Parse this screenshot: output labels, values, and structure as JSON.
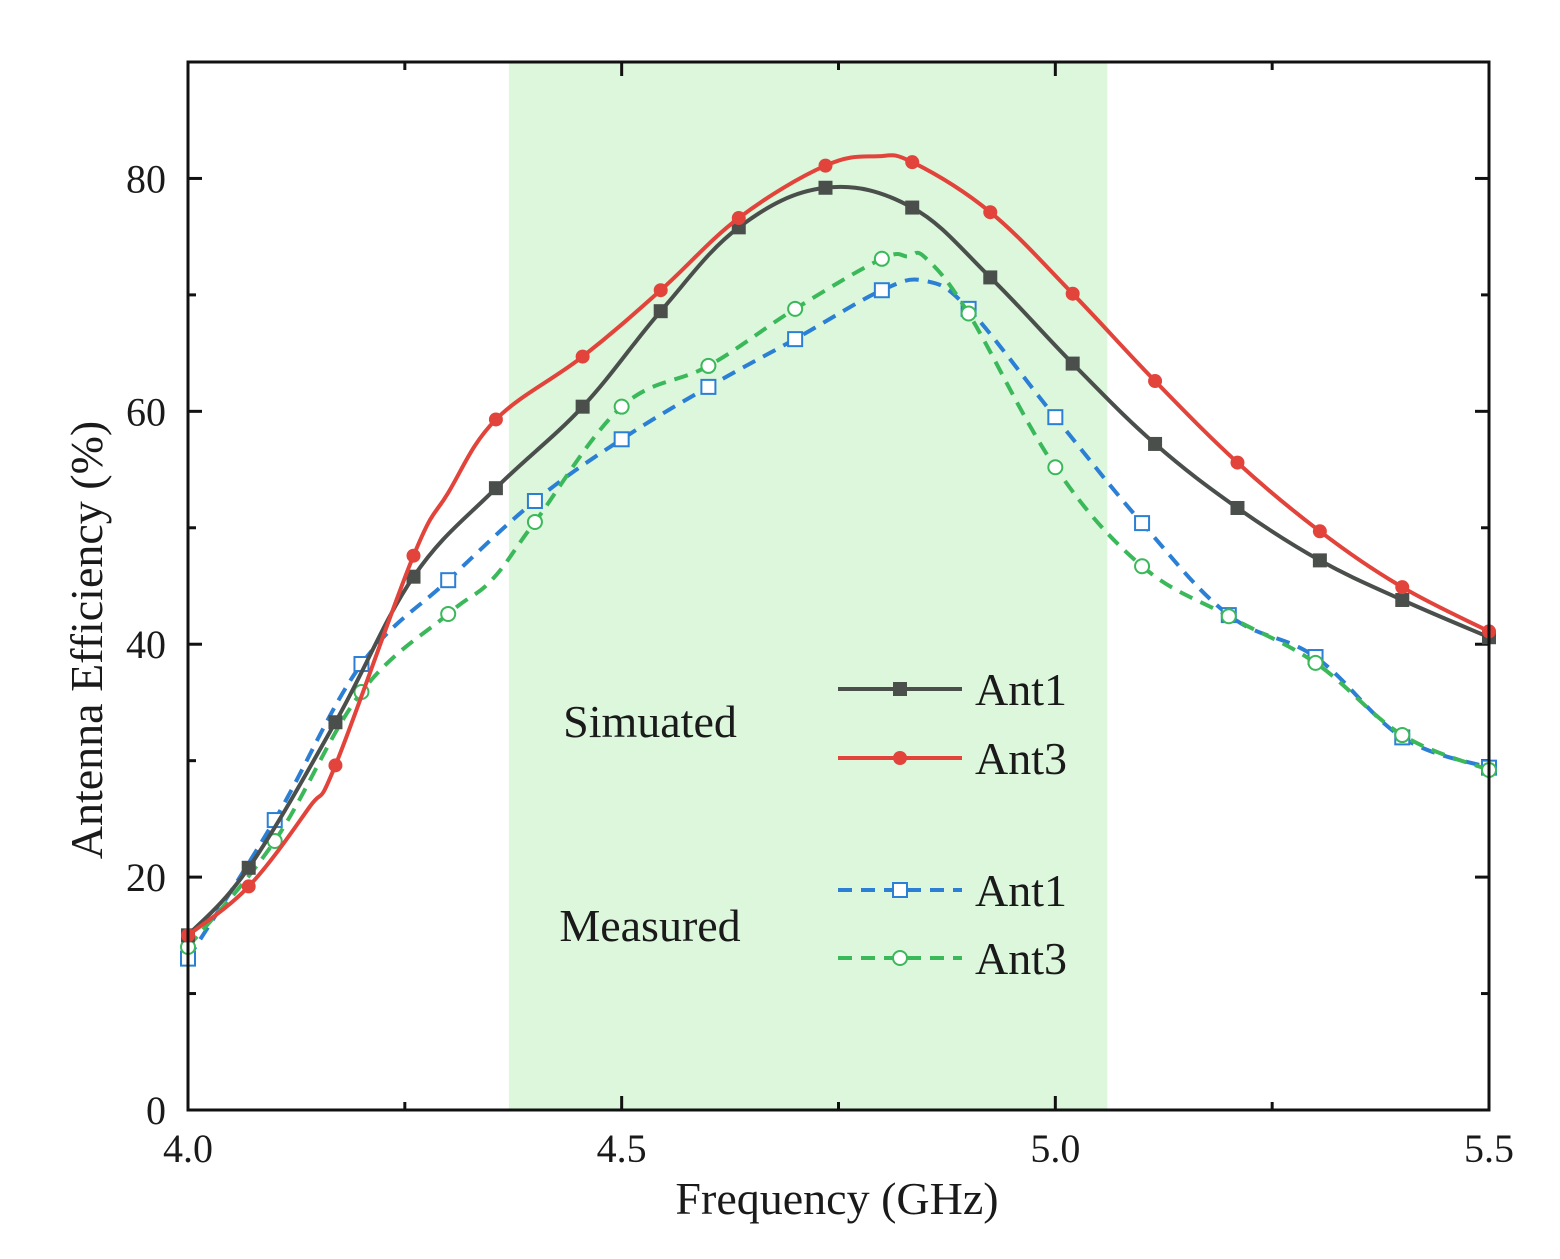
{
  "chart_data": {
    "type": "line",
    "xlabel": "Frequency (GHz)",
    "ylabel": "Antenna Efficiency (%)",
    "xlim": [
      4.0,
      5.5
    ],
    "ylim": [
      0,
      90
    ],
    "x_ticks": [
      4.0,
      4.5,
      5.0,
      5.5
    ],
    "x_tick_labels": [
      "4.0",
      "4.5",
      "5.0",
      "5.5"
    ],
    "x_minor_ticks": [
      4.25,
      4.75,
      5.25
    ],
    "y_ticks": [
      0,
      20,
      40,
      60,
      80
    ],
    "y_tick_labels": [
      "0",
      "20",
      "40",
      "60",
      "80"
    ],
    "y_minor_ticks": [
      10,
      30,
      50,
      70
    ],
    "highlight_band": {
      "x_start": 4.37,
      "x_end": 5.06,
      "color": "#dcf7dc"
    },
    "legend_groups": [
      {
        "label": "Simuated",
        "series": [
          "Ant1",
          "Ant3"
        ]
      },
      {
        "label": "Measured",
        "series": [
          "Ant1",
          "Ant3"
        ]
      }
    ],
    "series": [
      {
        "name": "Ant1",
        "group": "Simuated",
        "color": "#4a4f4c",
        "dash": "solid",
        "marker": "square-filled",
        "x": [
          4.0,
          4.07,
          4.17,
          4.26,
          4.355,
          4.455,
          4.545,
          4.635,
          4.735,
          4.835,
          4.925,
          5.02,
          5.115,
          5.21,
          5.305,
          5.4,
          5.5
        ],
        "values": [
          15,
          20.8,
          33.3,
          45.8,
          53.4,
          60.4,
          68.6,
          75.8,
          79.2,
          77.5,
          71.5,
          64.1,
          57.2,
          51.7,
          47.2,
          43.8,
          40.6
        ]
      },
      {
        "name": "Ant3",
        "group": "Simuated",
        "color": "#e2433a",
        "dash": "solid",
        "marker": "circle-filled",
        "x": [
          4.0,
          4.07,
          4.14,
          4.17,
          4.26,
          4.3,
          4.355,
          4.455,
          4.545,
          4.635,
          4.735,
          4.795,
          4.835,
          4.925,
          5.02,
          5.115,
          5.21,
          5.305,
          5.4,
          5.5
        ],
        "values": [
          15,
          19.2,
          26,
          29.6,
          47.6,
          53,
          59.3,
          64.7,
          70.4,
          76.6,
          81.1,
          81.9,
          81.4,
          77.1,
          70.1,
          62.6,
          55.6,
          49.7,
          44.9,
          41.1
        ]
      },
      {
        "name": "Ant1",
        "group": "Measured",
        "color": "#2b7fd4",
        "dash": "dashed",
        "marker": "square-open",
        "x": [
          4.0,
          4.1,
          4.2,
          4.3,
          4.4,
          4.5,
          4.6,
          4.7,
          4.8,
          4.85,
          4.9,
          5.0,
          5.1,
          5.2,
          5.3,
          5.4,
          5.5
        ],
        "values": [
          13,
          24.9,
          38.3,
          45.5,
          52.3,
          57.6,
          62.1,
          66.2,
          70.4,
          71.2,
          68.8,
          59.5,
          50.4,
          42.5,
          38.9,
          32,
          29.4
        ],
        "marker_x": [
          4.0,
          4.1,
          4.2,
          4.3,
          4.4,
          4.5,
          4.6,
          4.7,
          4.8,
          4.9,
          5.0,
          5.1,
          5.2,
          5.3,
          5.4,
          5.5
        ]
      },
      {
        "name": "Ant3",
        "group": "Measured",
        "color": "#3bb85a",
        "dash": "dashed",
        "marker": "circle-open",
        "x": [
          4.0,
          4.1,
          4.2,
          4.3,
          4.35,
          4.4,
          4.5,
          4.6,
          4.7,
          4.8,
          4.83,
          4.85,
          4.9,
          5.0,
          5.1,
          5.2,
          5.3,
          5.4,
          5.5
        ],
        "values": [
          14,
          23.1,
          35.9,
          42.6,
          45.5,
          50.5,
          60.4,
          63.9,
          68.8,
          73.1,
          73.3,
          73.2,
          68.4,
          55.2,
          46.7,
          42.4,
          38.4,
          32.2,
          29.2
        ],
        "marker_x": [
          4.0,
          4.1,
          4.2,
          4.3,
          4.4,
          4.5,
          4.6,
          4.7,
          4.8,
          4.9,
          5.0,
          5.1,
          5.2,
          5.3,
          5.4,
          5.5
        ]
      }
    ]
  }
}
